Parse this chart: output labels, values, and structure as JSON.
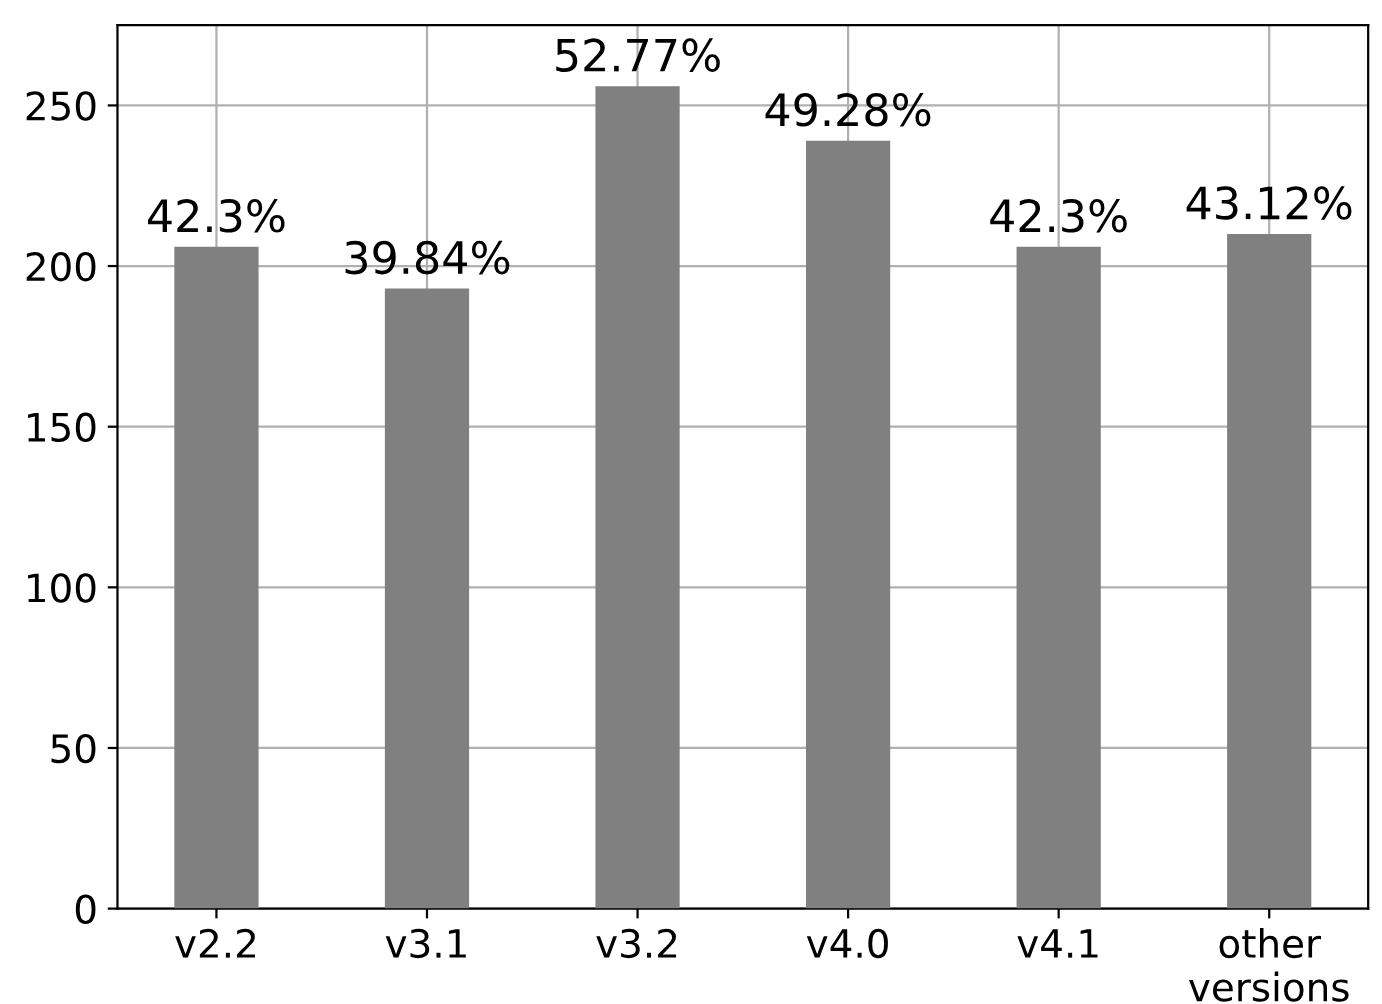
{
  "chart_data": {
    "type": "bar",
    "categories": [
      "v2.2",
      "v3.1",
      "v3.2",
      "v4.0",
      "v4.1",
      "other\nversions"
    ],
    "values": [
      206,
      193,
      256,
      239,
      206,
      210
    ],
    "annotations": [
      {
        "text": "42.3%",
        "x": "v2.2",
        "y": 206
      },
      {
        "text": "39.84%",
        "x": "v3.1",
        "y": 193
      },
      {
        "text": "52.77%",
        "x": "v3.2",
        "y": 256
      },
      {
        "text": "49.28%",
        "x": "v4.0",
        "y": 239
      },
      {
        "text": "42.3%",
        "x": "v4.1",
        "y": 206
      },
      {
        "text": "43.12%",
        "x": "other\nversions",
        "y": 210
      }
    ],
    "color": "#808080",
    "ylim": [
      0,
      275
    ],
    "yticks": [
      0,
      50,
      100,
      150,
      200,
      250
    ],
    "grid": true
  }
}
